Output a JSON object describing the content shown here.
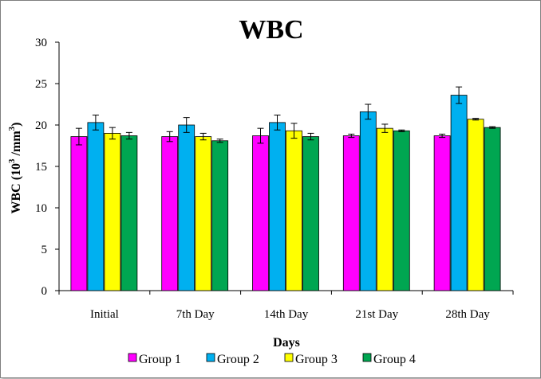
{
  "chart_data": {
    "type": "bar",
    "title": "WBC",
    "xlabel": "Days",
    "ylabel_main": "WBC (10",
    "ylabel_sup": "3",
    "ylabel_tail": " /mm",
    "ylabel_sup2": "3",
    "ylabel_close": ")",
    "ylim": [
      0,
      30
    ],
    "yticks": [
      "0",
      "5",
      "10",
      "15",
      "20",
      "25",
      "30"
    ],
    "categories": [
      "Initial",
      "7th Day",
      "14th Day",
      "21st Day",
      "28th Day"
    ],
    "series": [
      {
        "name": "Group 1",
        "color": "#ff00ff",
        "values": [
          18.6,
          18.6,
          18.7,
          18.7,
          18.7
        ],
        "errors": [
          1.0,
          0.6,
          0.9,
          0.2,
          0.2
        ]
      },
      {
        "name": "Group 2",
        "color": "#00b0f0",
        "values": [
          20.3,
          20.0,
          20.3,
          21.6,
          23.6
        ],
        "errors": [
          0.9,
          0.9,
          0.9,
          0.9,
          1.0
        ]
      },
      {
        "name": "Group 3",
        "color": "#ffff00",
        "values": [
          19.0,
          18.6,
          19.3,
          19.6,
          20.7
        ],
        "errors": [
          0.7,
          0.4,
          0.9,
          0.5,
          0.1
        ]
      },
      {
        "name": "Group 4",
        "color": "#00a651",
        "values": [
          18.7,
          18.1,
          18.6,
          19.3,
          19.7
        ],
        "errors": [
          0.4,
          0.2,
          0.4,
          0.1,
          0.1
        ]
      }
    ],
    "grid": false,
    "legend_position": "bottom"
  }
}
